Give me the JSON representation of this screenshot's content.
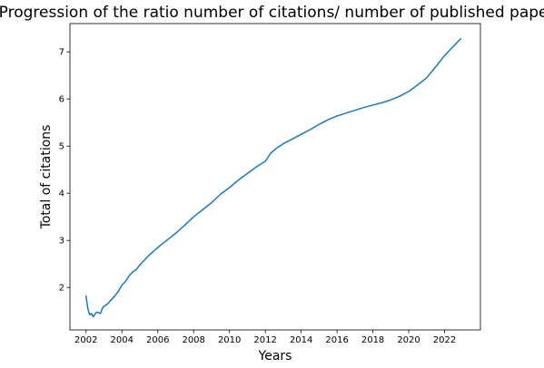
{
  "chart_data": {
    "type": "line",
    "title": "Progression of the ratio number of citations/ number of published papers",
    "xlabel": "Years",
    "ylabel": "Total of citations",
    "xlim": [
      2001.1,
      2024.0
    ],
    "ylim": [
      1.1,
      7.6
    ],
    "x_ticks": [
      2002,
      2004,
      2006,
      2008,
      2010,
      2012,
      2014,
      2016,
      2018,
      2020,
      2022
    ],
    "x_tick_labels": [
      "2002",
      "2004",
      "2006",
      "2008",
      "2010",
      "2012",
      "2014",
      "2016",
      "2018",
      "2020",
      "2022"
    ],
    "y_ticks": [
      2,
      3,
      4,
      5,
      6,
      7
    ],
    "y_tick_labels": [
      "2",
      "3",
      "4",
      "5",
      "6",
      "7"
    ],
    "grid": false,
    "series": [
      {
        "color": "#1f77b4",
        "x": [
          2002.0,
          2002.1,
          2002.2,
          2002.3,
          2002.4,
          2002.5,
          2002.6,
          2002.8,
          2002.9,
          2003.0,
          2003.2,
          2003.4,
          2003.6,
          2003.8,
          2004.0,
          2004.2,
          2004.4,
          2004.6,
          2004.8,
          2005.0,
          2005.5,
          2006.0,
          2006.5,
          2007.0,
          2007.5,
          2008.0,
          2008.5,
          2009.0,
          2009.5,
          2010.0,
          2010.5,
          2011.0,
          2011.5,
          2012.0,
          2012.3,
          2012.6,
          2013.0,
          2013.5,
          2014.0,
          2014.5,
          2015.0,
          2015.5,
          2016.0,
          2016.5,
          2017.0,
          2017.5,
          2018.0,
          2018.5,
          2019.0,
          2019.5,
          2020.0,
          2020.5,
          2021.0,
          2021.5,
          2022.0,
          2022.5,
          2022.9
        ],
        "y": [
          1.82,
          1.55,
          1.42,
          1.45,
          1.38,
          1.44,
          1.48,
          1.45,
          1.55,
          1.6,
          1.65,
          1.74,
          1.82,
          1.92,
          2.05,
          2.13,
          2.25,
          2.33,
          2.38,
          2.48,
          2.68,
          2.85,
          3.0,
          3.15,
          3.32,
          3.5,
          3.65,
          3.8,
          3.98,
          4.12,
          4.28,
          4.42,
          4.56,
          4.68,
          4.85,
          4.95,
          5.05,
          5.15,
          5.25,
          5.35,
          5.46,
          5.56,
          5.64,
          5.7,
          5.76,
          5.82,
          5.87,
          5.92,
          5.98,
          6.06,
          6.16,
          6.3,
          6.45,
          6.68,
          6.92,
          7.12,
          7.28
        ]
      }
    ]
  }
}
